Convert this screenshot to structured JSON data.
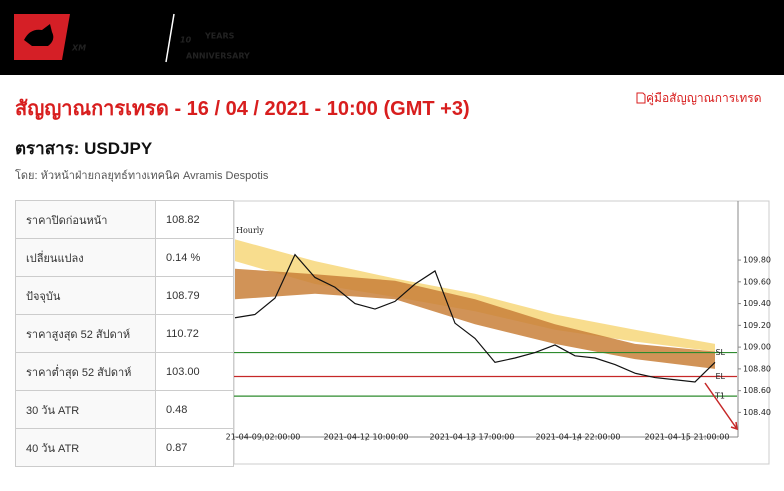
{
  "header": {
    "logo": "XM",
    "anniversary": "10",
    "years": "YEARS",
    "anniversary_label": "ANNIVERSARY",
    "guide_link": "คู่มือสัญญาณการเทรด"
  },
  "title": "สัญญาณการเทรด - 16 / 04 / 2021 - 10:00 (GMT +3)",
  "instrument": "ตราสาร: USDJPY",
  "author": "โดย: หัวหน้าฝ่ายกลยุทธ์ทางเทคนิค Avramis Despotis",
  "table": {
    "rows": [
      [
        "ราคาปิดก่อนหน้า",
        "108.82"
      ],
      [
        "เปลี่ยนแปลง",
        "0.14 %"
      ],
      [
        "ปัจจุบัน",
        "108.79"
      ],
      [
        "ราคาสูงสุด 52 สัปดาห์",
        "110.72"
      ],
      [
        "ราคาต่ำสุด 52 สัปดาห์",
        "103.00"
      ],
      [
        "30 วัน ATR",
        "0.48"
      ],
      [
        "40 วัน ATR",
        "0.87"
      ]
    ]
  },
  "chart_data": {
    "type": "line",
    "timeframe": "Hourly",
    "x": [
      0,
      2,
      4,
      6,
      8,
      10,
      12,
      14,
      16,
      18,
      20,
      22,
      24,
      26,
      28,
      30,
      32,
      34,
      36,
      38,
      40,
      42,
      44,
      46,
      48
    ],
    "series": [
      {
        "color": "#111111",
        "values": [
          109.27,
          109.3,
          109.45,
          109.85,
          109.64,
          109.55,
          109.4,
          109.35,
          109.42,
          109.58,
          109.7,
          109.22,
          109.08,
          108.86,
          108.9,
          108.95,
          109.02,
          108.92,
          108.9,
          108.84,
          108.76,
          108.72,
          108.7,
          108.68,
          108.86
        ]
      }
    ],
    "bands": [
      {
        "color": "#f7d77a",
        "x": [
          0,
          8,
          16,
          24,
          32,
          40,
          48
        ],
        "upper": [
          109.99,
          109.79,
          109.63,
          109.49,
          109.3,
          109.16,
          109.03
        ],
        "lower": [
          109.79,
          109.58,
          109.46,
          109.33,
          109.16,
          109.05,
          108.96
        ]
      },
      {
        "color": "#c9803a",
        "x": [
          0,
          8,
          16,
          24,
          32,
          40,
          48
        ],
        "upper": [
          109.72,
          109.67,
          109.61,
          109.44,
          109.21,
          109.03,
          108.96
        ],
        "lower": [
          109.44,
          109.49,
          109.44,
          109.21,
          109.03,
          108.89,
          108.8
        ]
      }
    ],
    "levels": [
      {
        "label": "SL",
        "value": 108.95,
        "color": "#2e8b2e"
      },
      {
        "label": "EL",
        "value": 108.73,
        "color": "#c62828"
      },
      {
        "label": "T1",
        "value": 108.55,
        "color": "#2e8b2e"
      }
    ],
    "xlim": [
      0,
      50
    ],
    "xticks": [
      {
        "value": 2.8,
        "label": "21-04-09 02:00:00"
      },
      {
        "value": 13.1,
        "label": "2021-04-12 10:00:00"
      },
      {
        "value": 23.7,
        "label": "2021-04-13 17:00:00"
      },
      {
        "value": 34.3,
        "label": "2021-04-14 22:00:00"
      },
      {
        "value": 45.2,
        "label": "2021-04-15 21:00:00"
      }
    ],
    "ylim": [
      108.22,
      110.26
    ],
    "yticks": [
      {
        "value": 108.4,
        "label": "108.40"
      },
      {
        "value": 108.6,
        "label": "108.60"
      },
      {
        "value": 108.8,
        "label": "108.80"
      },
      {
        "value": 109.0,
        "label": "109.00"
      },
      {
        "value": 109.2,
        "label": "109.20"
      },
      {
        "value": 109.4,
        "label": "109.40"
      },
      {
        "value": 109.6,
        "label": "109.60"
      },
      {
        "value": 109.8,
        "label": "109.80"
      }
    ]
  }
}
